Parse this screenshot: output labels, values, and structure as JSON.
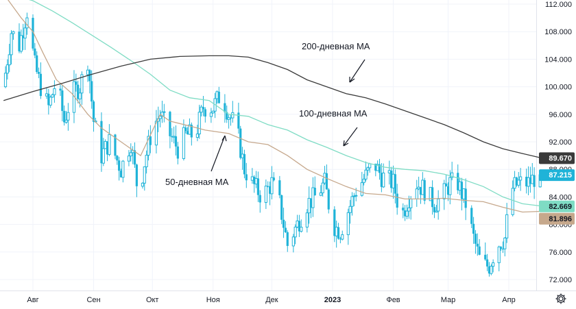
{
  "chart_data": {
    "type": "candlestick",
    "title": "",
    "xlabel": "",
    "ylabel": "",
    "ylim": [
      70,
      113
    ],
    "y_ticks": [
      "72.000",
      "76.000",
      "80.000",
      "84.000",
      "88.000",
      "92.000",
      "96.000",
      "100.000",
      "104.000",
      "108.000",
      "112.000"
    ],
    "x_ticks": [
      {
        "label": "Авг",
        "day": 0,
        "bold": false
      },
      {
        "label": "Сен",
        "day": 31,
        "bold": false
      },
      {
        "label": "Окт",
        "day": 61,
        "bold": false
      },
      {
        "label": "Ноя",
        "day": 92,
        "bold": false
      },
      {
        "label": "Дек",
        "day": 122,
        "bold": false
      },
      {
        "label": "2023",
        "day": 153,
        "bold": true
      },
      {
        "label": "Фев",
        "day": 184,
        "bold": false
      },
      {
        "label": "Мар",
        "day": 212,
        "bold": false
      },
      {
        "label": "Апр",
        "day": 243,
        "bold": false
      }
    ],
    "x_range_days": [
      -15,
      271
    ],
    "candle_color": "#1fb3d8",
    "price_anchors": [
      [
        -15,
        100
      ],
      [
        -11,
        108
      ],
      [
        -7,
        106
      ],
      [
        -3,
        111
      ],
      [
        1,
        103
      ],
      [
        4,
        100
      ],
      [
        8,
        97
      ],
      [
        12,
        101
      ],
      [
        16,
        95
      ],
      [
        20,
        99
      ],
      [
        24,
        100
      ],
      [
        28,
        104
      ],
      [
        31,
        95
      ],
      [
        35,
        90
      ],
      [
        39,
        92
      ],
      [
        45,
        88
      ],
      [
        50,
        92
      ],
      [
        54,
        84
      ],
      [
        57,
        89
      ],
      [
        61,
        94
      ],
      [
        65,
        96
      ],
      [
        70,
        93
      ],
      [
        74,
        91
      ],
      [
        78,
        93
      ],
      [
        83,
        93
      ],
      [
        87,
        97
      ],
      [
        92,
        97
      ],
      [
        96,
        99
      ],
      [
        100,
        96
      ],
      [
        104,
        94
      ],
      [
        108,
        88
      ],
      [
        112,
        86
      ],
      [
        117,
        84
      ],
      [
        122,
        86
      ],
      [
        126,
        83
      ],
      [
        130,
        77
      ],
      [
        135,
        80
      ],
      [
        140,
        83
      ],
      [
        144,
        84
      ],
      [
        149,
        86
      ],
      [
        153,
        80
      ],
      [
        157,
        79
      ],
      [
        161,
        82
      ],
      [
        165,
        85
      ],
      [
        170,
        87
      ],
      [
        174,
        89
      ],
      [
        178,
        87
      ],
      [
        184,
        86
      ],
      [
        188,
        81
      ],
      [
        192,
        84
      ],
      [
        196,
        86
      ],
      [
        200,
        85
      ],
      [
        205,
        83
      ],
      [
        209,
        84
      ],
      [
        213,
        86
      ],
      [
        217,
        86
      ],
      [
        221,
        83
      ],
      [
        225,
        78
      ],
      [
        229,
        74
      ],
      [
        233,
        74
      ],
      [
        237,
        77
      ],
      [
        241,
        78
      ],
      [
        244,
        85
      ],
      [
        248,
        86
      ],
      [
        253,
        86
      ],
      [
        257,
        87
      ],
      [
        259,
        87.2
      ]
    ],
    "series": [
      {
        "name": "50-дневная MA",
        "color": "#c6a88c",
        "last_value": "81.896",
        "points": [
          [
            -15,
            113.5
          ],
          [
            -6,
            110
          ],
          [
            0,
            108
          ],
          [
            5,
            105
          ],
          [
            12,
            101
          ],
          [
            20,
            99
          ],
          [
            28,
            96
          ],
          [
            35,
            94
          ],
          [
            45,
            92
          ],
          [
            55,
            90
          ],
          [
            65,
            96
          ],
          [
            70,
            95
          ],
          [
            80,
            94.3
          ],
          [
            88,
            93.7
          ],
          [
            100,
            93.2
          ],
          [
            110,
            92
          ],
          [
            120,
            91.6
          ],
          [
            130,
            90
          ],
          [
            140,
            88
          ],
          [
            150,
            86.7
          ],
          [
            160,
            85.5
          ],
          [
            170,
            84.5
          ],
          [
            180,
            84.3
          ],
          [
            190,
            83.7
          ],
          [
            200,
            83.7
          ],
          [
            210,
            83.8
          ],
          [
            220,
            83.5
          ],
          [
            230,
            83.3
          ],
          [
            240,
            82.5
          ],
          [
            250,
            81.8
          ],
          [
            259,
            81.9
          ]
        ]
      },
      {
        "name": "100-дневная MA",
        "color": "#7fdcc4",
        "last_value": "82.669",
        "points": [
          [
            -15,
            113.7
          ],
          [
            0,
            112.5
          ],
          [
            10,
            111
          ],
          [
            20,
            109.3
          ],
          [
            30,
            107.5
          ],
          [
            40,
            105.7
          ],
          [
            50,
            103.8
          ],
          [
            60,
            101.8
          ],
          [
            70,
            99.5
          ],
          [
            80,
            98.4
          ],
          [
            90,
            98
          ],
          [
            100,
            96
          ],
          [
            110,
            95.7
          ],
          [
            120,
            94.5
          ],
          [
            130,
            93.7
          ],
          [
            140,
            92.3
          ],
          [
            150,
            91.2
          ],
          [
            160,
            90
          ],
          [
            170,
            89
          ],
          [
            180,
            88.3
          ],
          [
            190,
            88
          ],
          [
            200,
            87.8
          ],
          [
            210,
            87.3
          ],
          [
            220,
            86.5
          ],
          [
            230,
            85.5
          ],
          [
            240,
            84
          ],
          [
            250,
            83
          ],
          [
            259,
            82.7
          ]
        ]
      },
      {
        "name": "200-дневная MA",
        "color": "#3a3a3a",
        "last_value": "89.670",
        "points": [
          [
            -15,
            98
          ],
          [
            0,
            99.3
          ],
          [
            15,
            100.5
          ],
          [
            30,
            101.8
          ],
          [
            45,
            103
          ],
          [
            60,
            104
          ],
          [
            75,
            104.4
          ],
          [
            90,
            104.5
          ],
          [
            100,
            104.5
          ],
          [
            110,
            104.3
          ],
          [
            120,
            103.5
          ],
          [
            130,
            102.5
          ],
          [
            140,
            101
          ],
          [
            150,
            100
          ],
          [
            160,
            99
          ],
          [
            170,
            98.4
          ],
          [
            180,
            97.5
          ],
          [
            190,
            96.5
          ],
          [
            200,
            95.5
          ],
          [
            210,
            94.5
          ],
          [
            220,
            93.3
          ],
          [
            230,
            92
          ],
          [
            240,
            91
          ],
          [
            250,
            90.3
          ],
          [
            259,
            89.7
          ]
        ]
      }
    ],
    "current_price": {
      "label": "87.215",
      "value": 87.215,
      "color": "#1fb3d8"
    },
    "annotations": [
      {
        "text": "200-дневная MA",
        "series": 2
      },
      {
        "text": "100-дневная MA",
        "series": 1
      },
      {
        "text": "50-дневная MA",
        "series": 0
      }
    ]
  },
  "settings_icon": "gear-icon"
}
